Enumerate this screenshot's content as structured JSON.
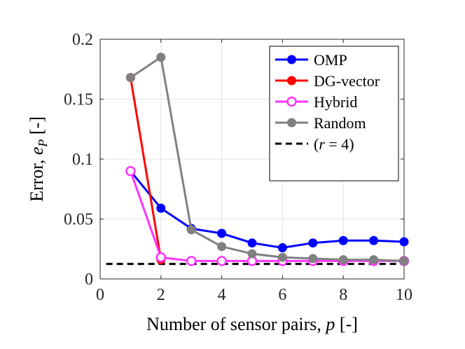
{
  "chart_data": {
    "type": "line",
    "xlabel": "Number of sensor pairs,",
    "xlabel_var": "p",
    "xlabel_unit": "[-]",
    "ylabel": "Error,",
    "ylabel_var": "e",
    "ylabel_sub": "P",
    "ylabel_unit": "[-]",
    "xlim": [
      0,
      10
    ],
    "ylim": [
      0,
      0.2
    ],
    "xticks": [
      0,
      2,
      4,
      6,
      8,
      10
    ],
    "yticks": [
      0,
      0.05,
      0.1,
      0.15,
      0.2
    ],
    "xtick_labels": [
      "0",
      "2",
      "4",
      "6",
      "8",
      "10"
    ],
    "ytick_labels": [
      "0",
      "0.05",
      "0.1",
      "0.15",
      "0.2"
    ],
    "grid": true,
    "legend_position": "top-right",
    "series": [
      {
        "name": "OMP",
        "color": "#0000ff",
        "marker": "filled-circle",
        "x": [
          1,
          2,
          3,
          4,
          5,
          6,
          7,
          8,
          9,
          10
        ],
        "y": [
          0.09,
          0.059,
          0.042,
          0.038,
          0.03,
          0.026,
          0.03,
          0.032,
          0.032,
          0.031
        ]
      },
      {
        "name": "DG-vector",
        "color": "#ff0000",
        "marker": "filled-circle",
        "x": [
          1,
          2
        ],
        "y": [
          0.168,
          0.016
        ]
      },
      {
        "name": "Hybrid",
        "color": "#ff33ff",
        "marker": "open-circle",
        "x": [
          1,
          2,
          3,
          4,
          5,
          6,
          7,
          8,
          9,
          10
        ],
        "y": [
          0.09,
          0.018,
          0.015,
          0.015,
          0.015,
          0.015,
          0.015,
          0.015,
          0.015,
          0.015
        ]
      },
      {
        "name": "Random",
        "color": "#808080",
        "marker": "filled-circle",
        "x": [
          1,
          2,
          3,
          4,
          5,
          6,
          7,
          8,
          9,
          10
        ],
        "y": [
          0.168,
          0.185,
          0.041,
          0.027,
          0.021,
          0.018,
          0.017,
          0.016,
          0.016,
          0.015
        ]
      }
    ],
    "reference_line": {
      "label_open": "(",
      "label_var": "r",
      "label_rest": " = 4)",
      "color": "#000000",
      "style": "dashed",
      "y": 0.0125,
      "x_range": [
        0.2,
        10
      ]
    }
  }
}
